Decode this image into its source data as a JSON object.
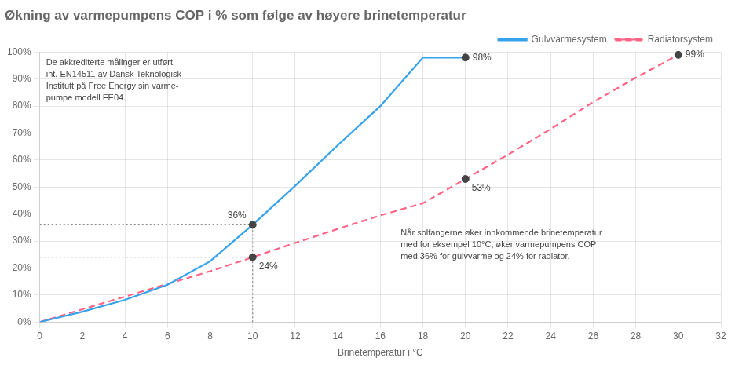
{
  "chart_data": {
    "type": "line",
    "title": "Økning av varmepumpens COP i % som følge av høyere brinetemperatur",
    "xlabel": "Brinetemperatur i °C",
    "xlim": [
      0,
      32
    ],
    "ylim": [
      0,
      1.0
    ],
    "xticks": [
      0,
      2,
      4,
      6,
      8,
      10,
      12,
      14,
      16,
      18,
      20,
      22,
      24,
      26,
      28,
      30,
      32
    ],
    "yticks": [
      {
        "value": 0,
        "label": "0%"
      },
      {
        "value": 0.1,
        "label": "10%"
      },
      {
        "value": 0.2,
        "label": "20%"
      },
      {
        "value": 0.3,
        "label": "30%"
      },
      {
        "value": 0.4,
        "label": "40%"
      },
      {
        "value": 0.5,
        "label": "50%"
      },
      {
        "value": 0.6,
        "label": "60%"
      },
      {
        "value": 0.7,
        "label": "70%"
      },
      {
        "value": 0.8,
        "label": "80%"
      },
      {
        "value": 0.9,
        "label": "90%"
      },
      {
        "value": 1.0,
        "label": "100%"
      }
    ],
    "grid": true,
    "legend": "top",
    "series": [
      {
        "name": "Gulvvarmesystem",
        "line_style": "solid",
        "x": [
          0,
          2,
          4,
          6,
          8,
          10,
          12,
          14,
          16,
          18,
          20
        ],
        "values": [
          0,
          0.038,
          0.082,
          0.138,
          0.225,
          0.36,
          0.505,
          0.655,
          0.8,
          0.98,
          0.98
        ]
      },
      {
        "name": "Radiatorsystem",
        "line_style": "dashed",
        "x": [
          0,
          2,
          4,
          6,
          8,
          10,
          12,
          14,
          16,
          18,
          20,
          22,
          24,
          26,
          28,
          30
        ],
        "values": [
          0,
          0.047,
          0.094,
          0.141,
          0.188,
          0.24,
          0.293,
          0.345,
          0.395,
          0.44,
          0.53,
          0.62,
          0.715,
          0.815,
          0.905,
          0.99
        ]
      }
    ],
    "reference_lines": [
      {
        "x": [
          0,
          10
        ],
        "values": [
          0.36,
          0.36
        ],
        "line_style": "dotted"
      },
      {
        "x": [
          0,
          10
        ],
        "values": [
          0.24,
          0.24
        ],
        "line_style": "dotted"
      },
      {
        "x": [
          10,
          10
        ],
        "values": [
          0,
          0.36
        ],
        "line_style": "dotted"
      }
    ],
    "annotations": [
      {
        "text": "36%",
        "x": 10,
        "y": 0.36,
        "marker": "circle"
      },
      {
        "text": "24%",
        "x": 10,
        "y": 0.24,
        "marker": "circle"
      },
      {
        "text": "98%",
        "x": 20,
        "y": 0.98,
        "marker": "circle"
      },
      {
        "text": "53%",
        "x": 20,
        "y": 0.53,
        "marker": "circle"
      },
      {
        "text": "99%",
        "x": 30,
        "y": 0.99,
        "marker": "circle"
      }
    ],
    "notes": [
      "De akkrediterte målinger er utført\niht. EN14511 av Dansk Teknologisk\nInstitutt på Free Energy sin varme-\npumpe modell FE04.",
      "Når solfangerne øker innkommende brinetemperatur\nmed for eksempel 10°C, øker varmepumpens COP\nmed 36% for gulvvarme og 24% for radiator."
    ]
  }
}
